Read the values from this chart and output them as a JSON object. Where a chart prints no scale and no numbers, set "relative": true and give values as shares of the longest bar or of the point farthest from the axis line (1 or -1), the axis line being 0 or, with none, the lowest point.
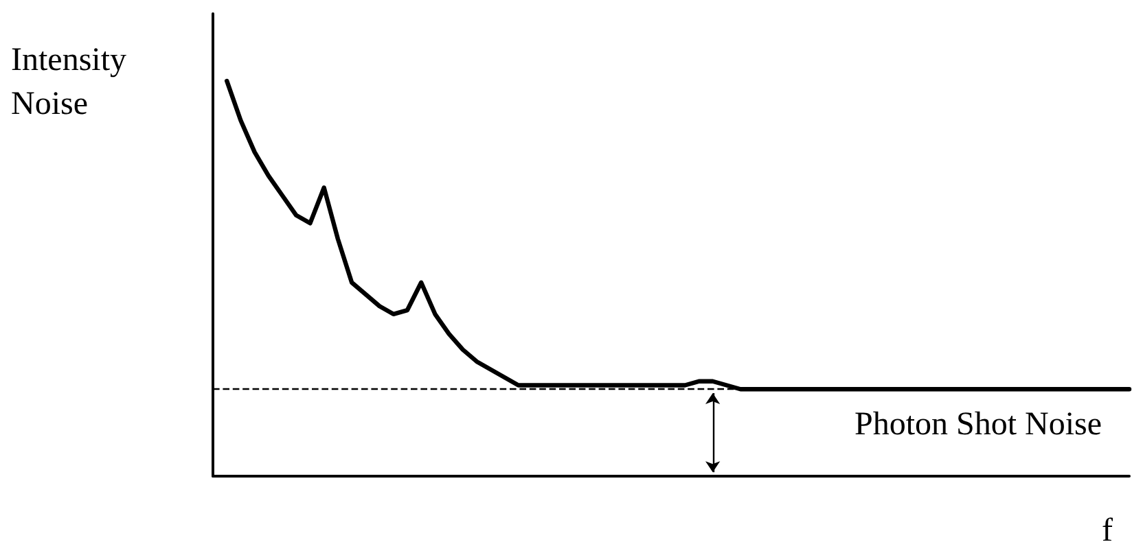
{
  "chart_data": {
    "type": "line",
    "relative": true,
    "xlabel": "f",
    "ylabel": "Intensity Noise",
    "categories": [
      null,
      null,
      null,
      null,
      null,
      null,
      null,
      null,
      null,
      null,
      null,
      null,
      null,
      null,
      null,
      null,
      null,
      null,
      null,
      null,
      null,
      null,
      null,
      null,
      null,
      null,
      null,
      null,
      null,
      null,
      null,
      null,
      null,
      null,
      null,
      null,
      null,
      null,
      null,
      null,
      null,
      null,
      null,
      null,
      null,
      null,
      null,
      null,
      null,
      null,
      null,
      null,
      null,
      null,
      null,
      null,
      null,
      null,
      null,
      null,
      null,
      null,
      null,
      null,
      null,
      null,
      null
    ],
    "series": [
      {
        "color": "#000000",
        "values": [
          null,
          1.0,
          0.9,
          0.82,
          0.76,
          0.71,
          0.66,
          0.64,
          0.73,
          0.6,
          0.49,
          0.46,
          0.43,
          0.41,
          0.42,
          0.49,
          0.41,
          0.36,
          0.32,
          0.29,
          0.27,
          0.25,
          0.23,
          0.23,
          0.23,
          0.23,
          0.23,
          0.23,
          0.23,
          0.23,
          0.23,
          0.23,
          0.23,
          0.23,
          0.23,
          0.24,
          0.24,
          0.23,
          0.22,
          0.22,
          0.22,
          0.22,
          0.22,
          0.22,
          0.22,
          0.22,
          0.22,
          0.22,
          0.22,
          0.22,
          0.22,
          0.22,
          0.22,
          0.22,
          0.22,
          0.22,
          0.22,
          0.22,
          0.22,
          0.22,
          0.22,
          0.22,
          0.22,
          0.22,
          0.22,
          0.22,
          0.22
        ]
      }
    ],
    "ref_lines": [
      {
        "axis": "y",
        "value": 0.22,
        "label": "Photon Shot Noise",
        "color": "#000000",
        "line_style": "dashed"
      }
    ],
    "marker": "none",
    "line_style": "solid",
    "grid": false,
    "tick_labels": false
  }
}
